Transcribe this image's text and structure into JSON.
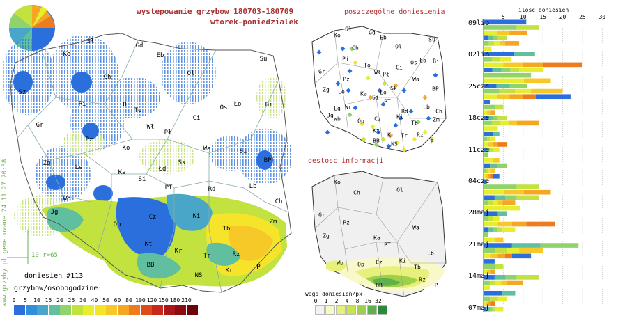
{
  "title_line1": "wystepowanie grzybow 180703-180709",
  "title_line2": "wtorek-poniedzialek",
  "map_small_top_title": "poszczególne doniesienia",
  "map_small_bottom_title": "gestosc informacji",
  "generated_note": "www.grzyby.pl generowane 24.11.27 20:38",
  "scale_note": "10 r=65",
  "reports_label": "doniesien #113",
  "legend_label": "grzybow/osobogodzine:",
  "legend_bins": [
    "0",
    "5",
    "10",
    "15",
    "20",
    "25",
    "30",
    "40",
    "50",
    "60",
    "80",
    "100",
    "120",
    "150",
    "180",
    "210"
  ],
  "legend_colors": [
    "#2a6fdc",
    "#2f8fd8",
    "#4aa6c8",
    "#5fbf9f",
    "#8fd36a",
    "#c2e23f",
    "#e6ee2e",
    "#f6e42a",
    "#f7c928",
    "#f5a623",
    "#ef7b1f",
    "#e04a1a",
    "#c8281a",
    "#a8161a",
    "#8a0c12",
    "#6a0408"
  ],
  "density_label": "waga doniesien/px",
  "density_bins": [
    "0",
    "1",
    "2",
    "4",
    "8",
    "16",
    "32"
  ],
  "density_colors": [
    "#f2f2f2",
    "#f8f8c8",
    "#e6f07a",
    "#c8e44a",
    "#9ed04a",
    "#5fb04a",
    "#2a8a3a"
  ],
  "cities_main": [
    "Sł",
    "Gd",
    "Ko",
    "Eb",
    "Su",
    "Sz",
    "Ch",
    "Ol",
    "Pi",
    "B",
    "To",
    "Ło",
    "Bi",
    "Gr",
    "Wł",
    "Pł",
    "Ci",
    "Os",
    "Pz",
    "Ko",
    "Wa",
    "Si",
    "BP",
    "Zg",
    "Le",
    "Sk",
    "Ka",
    "Łd",
    "Si",
    "PT",
    "Rd",
    "Lb",
    "Wb",
    "Ch",
    "Jg",
    "Op",
    "Cz",
    "Ki",
    "Tb",
    "Zm",
    "Kt",
    "Kr",
    "Rz",
    "Tr",
    "BB",
    "NS",
    "Kr",
    "P"
  ],
  "cities_small": [
    "Sł",
    "Gd",
    "Ko",
    "Eb",
    "Ch",
    "Ol",
    "Su",
    "Pi",
    "Os",
    "Bi",
    "To",
    "Ło",
    "Gr",
    "Wł",
    "Ci",
    "Pz",
    "Pł",
    "Wa",
    "Sk",
    "BP",
    "Zg",
    "Le",
    "Ka",
    "Si",
    "Ło",
    "PT",
    "Lb",
    "Lg",
    "Wr",
    "Rd",
    "Ch",
    "Jg",
    "Wb",
    "Op",
    "Cz",
    "Ki",
    "Tb",
    "Zm",
    "Kt",
    "Rz",
    "Tr",
    "Kr",
    "BB",
    "NS",
    "P"
  ],
  "chart_data": {
    "type": "bar",
    "title": "ilosc doniesien",
    "x_ticks": [
      5,
      10,
      15,
      20,
      25,
      30
    ],
    "xlim": [
      0,
      31
    ],
    "date_labels": [
      "09lip",
      "02lip",
      "25cze",
      "18cze",
      "11cze",
      "04cze",
      "28maj",
      "21maj",
      "14maj",
      "07maj"
    ]
  }
}
